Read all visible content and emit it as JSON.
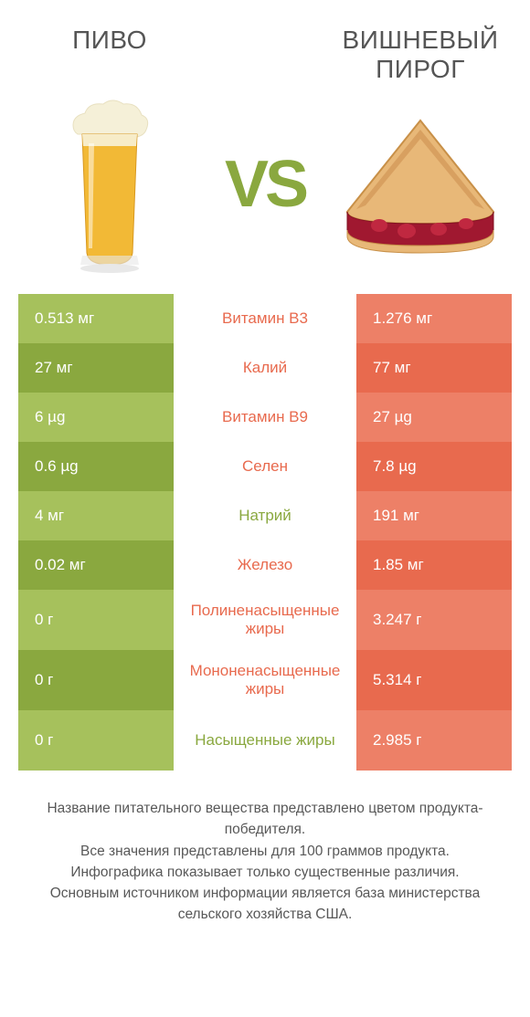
{
  "colors": {
    "left_light": "#a6c15c",
    "left_dark": "#8aa83f",
    "right_light": "#ed8067",
    "right_dark": "#e86a4e",
    "green_text": "#8aa83f",
    "red_text": "#e86a4e",
    "heading": "#555555",
    "footer": "#585858",
    "bg": "#ffffff"
  },
  "header": {
    "left": "ПИВО",
    "right": "ВИШНЕВЫЙ ПИРОГ",
    "vs": "VS"
  },
  "rows": [
    {
      "left": "0.513 мг",
      "mid": "Витамин B3",
      "right": "1.276 мг",
      "winner": "right",
      "tall": false
    },
    {
      "left": "27 мг",
      "mid": "Калий",
      "right": "77 мг",
      "winner": "right",
      "tall": false
    },
    {
      "left": "6 µg",
      "mid": "Витамин B9",
      "right": "27 µg",
      "winner": "right",
      "tall": false
    },
    {
      "left": "0.6 µg",
      "mid": "Селен",
      "right": "7.8 µg",
      "winner": "right",
      "tall": false
    },
    {
      "left": "4 мг",
      "mid": "Натрий",
      "right": "191 мг",
      "winner": "left",
      "tall": false
    },
    {
      "left": "0.02 мг",
      "mid": "Железо",
      "right": "1.85 мг",
      "winner": "right",
      "tall": false
    },
    {
      "left": "0 г",
      "mid": "Полиненасыщенные жиры",
      "right": "3.247 г",
      "winner": "right",
      "tall": true
    },
    {
      "left": "0 г",
      "mid": "Мононенасыщенные жиры",
      "right": "5.314 г",
      "winner": "right",
      "tall": true
    },
    {
      "left": "0 г",
      "mid": "Насыщенные жиры",
      "right": "2.985 г",
      "winner": "left",
      "tall": true
    }
  ],
  "footer_lines": [
    "Название питательного вещества представлено цветом продукта-победителя.",
    "Все значения представлены для 100 граммов продукта.",
    "Инфографика показывает только существенные различия.",
    "Основным источником информации является база министерства сельского хозяйства США."
  ]
}
